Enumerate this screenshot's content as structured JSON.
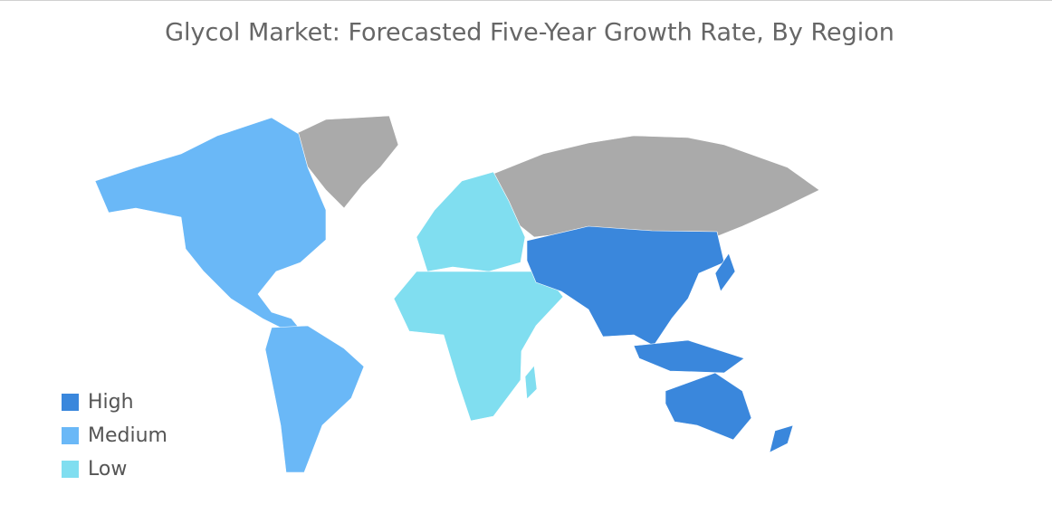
{
  "title": "Glycol Market: Forecasted Five-Year Growth Rate, By Region",
  "legend": [
    {
      "label": "High",
      "color": "#3a87dc"
    },
    {
      "label": "Medium",
      "color": "#6ab8f7"
    },
    {
      "label": "Low",
      "color": "#80def0"
    }
  ]
}
